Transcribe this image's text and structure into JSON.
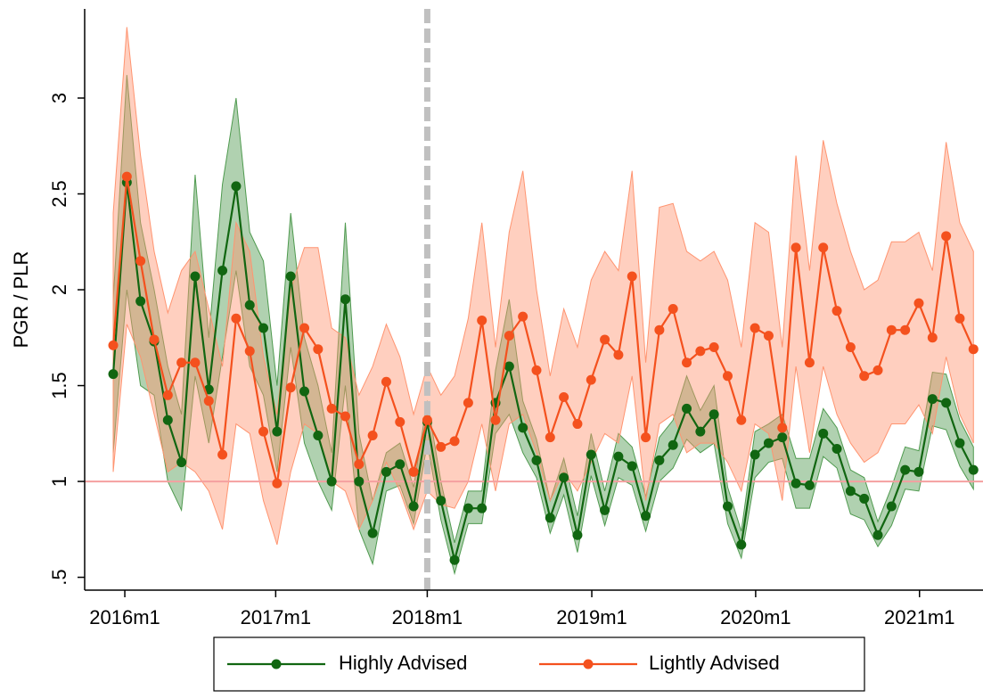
{
  "chart_data": {
    "type": "line",
    "y_label": "PGR / PLR",
    "x": [
      0,
      1,
      2,
      3,
      4,
      5,
      6,
      7,
      8,
      9,
      10,
      11,
      12,
      13,
      14,
      15,
      16,
      17,
      18,
      19,
      20,
      21,
      22,
      23,
      24,
      25,
      26,
      27,
      28,
      29,
      30,
      31,
      32,
      33,
      34,
      35,
      36,
      37,
      38,
      39,
      40,
      41,
      42,
      43,
      44,
      45,
      46,
      47,
      48,
      49,
      50,
      51,
      52,
      53,
      54,
      55,
      56,
      57,
      58,
      59,
      60,
      61,
      62,
      63
    ],
    "series": [
      {
        "name": "Highly Advised",
        "color": "#116611",
        "band_color": "#4f9a4f",
        "values": [
          1.56,
          2.56,
          1.94,
          1.73,
          1.32,
          1.1,
          2.07,
          1.48,
          2.1,
          2.54,
          1.92,
          1.8,
          1.26,
          2.07,
          1.47,
          1.24,
          1.0,
          1.95,
          1.0,
          0.73,
          1.05,
          1.09,
          0.87,
          1.31,
          0.9,
          0.59,
          0.86,
          0.86,
          1.41,
          1.6,
          1.28,
          1.11,
          0.81,
          1.02,
          0.72,
          1.14,
          0.85,
          1.13,
          1.08,
          0.82,
          1.11,
          1.19,
          1.38,
          1.26,
          1.35,
          0.87,
          0.67,
          1.14,
          1.2,
          1.23,
          0.99,
          0.98,
          1.25,
          1.17,
          0.95,
          0.91,
          0.72,
          0.87,
          1.06,
          1.05,
          1.43,
          1.41,
          1.2,
          1.06
        ],
        "lower": [
          1.15,
          2.0,
          1.5,
          1.45,
          1.0,
          0.85,
          1.55,
          1.2,
          1.65,
          2.1,
          1.6,
          1.45,
          1.05,
          1.7,
          1.2,
          1.0,
          0.85,
          1.5,
          0.75,
          0.57,
          0.95,
          0.98,
          0.78,
          1.2,
          0.8,
          0.52,
          0.78,
          0.78,
          1.25,
          1.35,
          1.15,
          1.02,
          0.73,
          0.93,
          0.63,
          1.03,
          0.77,
          1.02,
          0.98,
          0.74,
          1.0,
          1.07,
          1.22,
          1.15,
          1.2,
          0.78,
          0.6,
          1.02,
          1.1,
          1.12,
          0.86,
          0.86,
          1.13,
          1.07,
          0.83,
          0.8,
          0.66,
          0.77,
          0.96,
          0.95,
          1.29,
          1.27,
          1.08,
          0.96
        ],
        "upper": [
          1.95,
          3.12,
          2.35,
          2.0,
          1.6,
          1.35,
          2.6,
          1.75,
          2.55,
          3.0,
          2.3,
          2.15,
          1.5,
          2.4,
          1.75,
          1.5,
          1.15,
          2.35,
          1.25,
          0.9,
          1.15,
          1.2,
          0.97,
          1.42,
          1.0,
          0.68,
          0.95,
          0.95,
          1.58,
          1.95,
          1.42,
          1.22,
          0.9,
          1.12,
          0.82,
          1.25,
          0.95,
          1.25,
          1.18,
          0.92,
          1.23,
          1.32,
          1.55,
          1.37,
          1.5,
          0.97,
          0.74,
          1.26,
          1.3,
          1.35,
          1.12,
          1.12,
          1.38,
          1.28,
          1.06,
          1.02,
          0.79,
          0.97,
          1.18,
          1.16,
          1.57,
          1.56,
          1.32,
          1.18
        ]
      },
      {
        "name": "Lightly Advised",
        "color": "#f4511e",
        "band_color": "#ff9470",
        "values": [
          1.71,
          2.59,
          2.15,
          1.74,
          1.45,
          1.62,
          1.62,
          1.42,
          1.14,
          1.85,
          1.68,
          1.26,
          0.99,
          1.49,
          1.8,
          1.69,
          1.38,
          1.34,
          1.09,
          1.24,
          1.52,
          1.31,
          1.05,
          1.32,
          1.18,
          1.21,
          1.41,
          1.84,
          1.32,
          1.76,
          1.86,
          1.58,
          1.23,
          1.44,
          1.3,
          1.53,
          1.74,
          1.66,
          2.07,
          1.23,
          1.79,
          1.9,
          1.62,
          1.68,
          1.7,
          1.55,
          1.32,
          1.8,
          1.76,
          1.28,
          2.22,
          1.62,
          2.22,
          1.89,
          1.7,
          1.55,
          1.58,
          1.79,
          1.79,
          1.93,
          1.75,
          2.28,
          1.85,
          1.69
        ],
        "lower": [
          1.05,
          1.82,
          1.65,
          1.35,
          1.05,
          1.1,
          1.05,
          0.95,
          0.75,
          1.3,
          1.25,
          0.9,
          0.67,
          1.05,
          1.3,
          1.25,
          1.0,
          0.95,
          0.75,
          0.9,
          1.1,
          0.95,
          0.75,
          0.95,
          0.88,
          0.86,
          1.0,
          1.3,
          0.95,
          1.3,
          1.35,
          1.15,
          0.9,
          1.05,
          0.95,
          1.1,
          1.25,
          1.2,
          1.55,
          0.9,
          1.3,
          1.35,
          1.15,
          1.2,
          1.2,
          1.1,
          0.95,
          1.3,
          1.25,
          0.9,
          1.6,
          1.15,
          1.6,
          1.35,
          1.2,
          1.1,
          1.15,
          1.3,
          1.3,
          1.4,
          1.25,
          1.65,
          1.35,
          1.2
        ],
        "upper": [
          2.4,
          3.37,
          2.7,
          2.2,
          1.88,
          2.1,
          2.2,
          1.9,
          1.6,
          2.35,
          2.2,
          1.65,
          1.35,
          2.0,
          2.22,
          2.22,
          1.8,
          1.75,
          1.45,
          1.6,
          1.82,
          1.65,
          1.35,
          1.6,
          1.45,
          1.55,
          1.85,
          2.35,
          1.7,
          2.3,
          2.62,
          2.0,
          1.55,
          1.9,
          1.7,
          2.05,
          2.2,
          2.1,
          2.62,
          1.62,
          2.43,
          2.45,
          2.2,
          2.15,
          2.2,
          2.05,
          1.7,
          2.35,
          2.3,
          1.7,
          2.7,
          2.1,
          2.78,
          2.45,
          2.2,
          2.0,
          2.05,
          2.25,
          2.25,
          2.3,
          2.1,
          2.77,
          2.35,
          2.2
        ]
      }
    ],
    "xlim": [
      -2.09,
      63.7
    ],
    "ylim": [
      0.433,
      3.465
    ],
    "xticks": [
      {
        "value": 0.85,
        "label": "2016m1"
      },
      {
        "value": 11.9,
        "label": "2017m1"
      },
      {
        "value": 23,
        "label": "2018m1"
      },
      {
        "value": 35.05,
        "label": "2019m1"
      },
      {
        "value": 47.05,
        "label": "2020m1"
      },
      {
        "value": 59.05,
        "label": "2021m1"
      }
    ],
    "yticks": [
      {
        "value": 0.5,
        "label": ".5"
      },
      1,
      1.5,
      2,
      2.5,
      3
    ],
    "hline": 1,
    "hline_color": "#f4a0a0",
    "vline": 23,
    "vline_color": "#c0c0c0",
    "legend": "bottom"
  }
}
